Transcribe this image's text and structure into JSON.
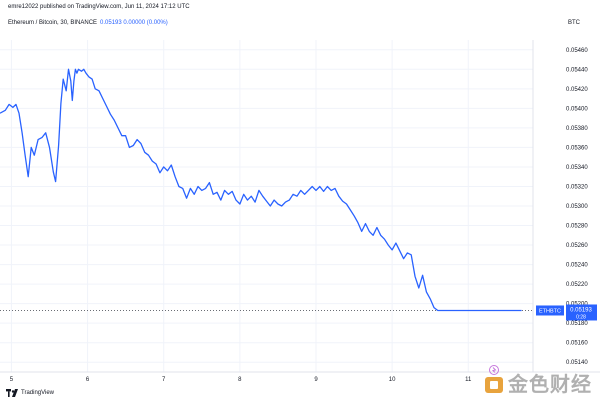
{
  "header": {
    "publish_line": "emre12022 published on TradingView.com, Jun 11, 2024 17:12 UTC",
    "symbol": "Ethereum / Bitcoin, 30, BINANCE",
    "quote": "0.05193 0.00000 (0.00%)",
    "currency": "BTC"
  },
  "footer": {
    "brand": "TradingView"
  },
  "watermark": {
    "text": "金色财经"
  },
  "colors": {
    "line": "#2962ff",
    "label_bg": "#2962ff",
    "text": "#131722",
    "grid": "#f0f3fa",
    "watermark": "#b0b0b0"
  },
  "chart_data": {
    "type": "line",
    "title": "Ethereum / Bitcoin, 30, BINANCE",
    "symbol": "ETHBTC",
    "current_value": 0.05193,
    "price_label": "0.05193",
    "time_label": "0:28",
    "x_ticks": [
      "5",
      "6",
      "7",
      "8",
      "9",
      "10",
      "11"
    ],
    "y_ticks": [
      "0.05460",
      "0.05440",
      "0.05420",
      "0.05400",
      "0.05380",
      "0.05360",
      "0.05340",
      "0.05320",
      "0.05300",
      "0.05280",
      "0.05260",
      "0.05240",
      "0.05220",
      "0.05200",
      "0.05180",
      "0.05160",
      "0.05140"
    ],
    "ylim": [
      0.0513,
      0.0547
    ],
    "xlim": [
      4.85,
      11.85
    ],
    "grid": true,
    "series": [
      {
        "x": [
          4.85,
          4.92,
          4.97,
          5.02,
          5.06,
          5.1,
          5.14,
          5.18,
          5.22,
          5.26,
          5.3,
          5.35,
          5.4,
          5.45,
          5.5,
          5.55,
          5.58,
          5.62,
          5.65,
          5.68,
          5.72,
          5.75,
          5.78,
          5.8,
          5.82,
          5.84,
          5.86,
          5.88,
          5.92,
          5.95,
          5.98,
          6.02,
          6.06,
          6.1,
          6.15,
          6.2,
          6.25,
          6.3,
          6.35,
          6.4,
          6.45,
          6.5,
          6.55,
          6.6,
          6.65,
          6.7,
          6.75,
          6.8,
          6.85,
          6.9,
          6.95,
          7.0,
          7.05,
          7.1,
          7.15,
          7.2,
          7.25,
          7.3,
          7.35,
          7.4,
          7.45,
          7.5,
          7.55,
          7.6,
          7.65,
          7.7,
          7.75,
          7.8,
          7.85,
          7.9,
          7.95,
          8.0,
          8.05,
          8.1,
          8.15,
          8.2,
          8.25,
          8.3,
          8.35,
          8.4,
          8.45,
          8.5,
          8.55,
          8.6,
          8.65,
          8.7,
          8.75,
          8.8,
          8.85,
          8.9,
          8.95,
          9.0,
          9.05,
          9.1,
          9.15,
          9.2,
          9.25,
          9.3,
          9.35,
          9.4,
          9.45,
          9.5,
          9.55,
          9.6,
          9.65,
          9.7,
          9.75,
          9.8,
          9.85,
          9.9,
          9.95,
          10.0,
          10.05,
          10.1,
          10.15,
          10.2,
          10.25,
          10.3,
          10.35,
          10.4,
          10.45,
          10.5,
          10.55,
          10.6,
          10.65,
          10.7,
          10.75,
          10.8,
          10.85,
          10.9,
          10.95,
          11.0,
          11.05,
          11.1,
          11.15,
          11.2,
          11.25,
          11.3,
          11.35,
          11.4,
          11.45,
          11.5,
          11.55,
          11.6,
          11.65,
          11.7
        ],
        "y": [
          0.05395,
          0.05398,
          0.05404,
          0.05401,
          0.05404,
          0.05395,
          0.05375,
          0.05352,
          0.0533,
          0.0536,
          0.05352,
          0.05368,
          0.0537,
          0.05375,
          0.0536,
          0.05335,
          0.05325,
          0.05362,
          0.05405,
          0.0543,
          0.05418,
          0.0544,
          0.05428,
          0.05408,
          0.05428,
          0.0544,
          0.05436,
          0.0544,
          0.05438,
          0.0544,
          0.05436,
          0.05432,
          0.0543,
          0.0542,
          0.05418,
          0.0541,
          0.05402,
          0.05394,
          0.05388,
          0.0538,
          0.05372,
          0.05372,
          0.0536,
          0.05362,
          0.05368,
          0.05364,
          0.05355,
          0.05352,
          0.05346,
          0.05343,
          0.05334,
          0.0534,
          0.05336,
          0.05342,
          0.0533,
          0.0532,
          0.05318,
          0.05308,
          0.05318,
          0.05312,
          0.0532,
          0.05316,
          0.05318,
          0.05324,
          0.05312,
          0.05314,
          0.05306,
          0.05316,
          0.05312,
          0.05315,
          0.05306,
          0.05302,
          0.05312,
          0.05306,
          0.0531,
          0.05304,
          0.05316,
          0.0531,
          0.05305,
          0.053,
          0.05306,
          0.05302,
          0.053,
          0.05304,
          0.05306,
          0.05312,
          0.0531,
          0.05316,
          0.05312,
          0.05316,
          0.0532,
          0.05316,
          0.0532,
          0.05315,
          0.0532,
          0.05316,
          0.05318,
          0.0531,
          0.05305,
          0.05302,
          0.05296,
          0.0529,
          0.05283,
          0.05274,
          0.05282,
          0.05274,
          0.0527,
          0.05278,
          0.0527,
          0.05266,
          0.0526,
          0.05255,
          0.05262,
          0.05254,
          0.05246,
          0.05252,
          0.0525,
          0.05228,
          0.05216,
          0.05229,
          0.05212,
          0.05205,
          0.05196,
          0.05193,
          0.05193,
          0.05193,
          0.05193,
          0.05193,
          0.05193,
          0.05193,
          0.05193,
          0.05193,
          0.05193,
          0.05193,
          0.05193,
          0.05193,
          0.05193,
          0.05193,
          0.05193,
          0.05193,
          0.05193,
          0.05193,
          0.05193,
          0.05193,
          0.05193,
          0.05193
        ]
      }
    ]
  }
}
